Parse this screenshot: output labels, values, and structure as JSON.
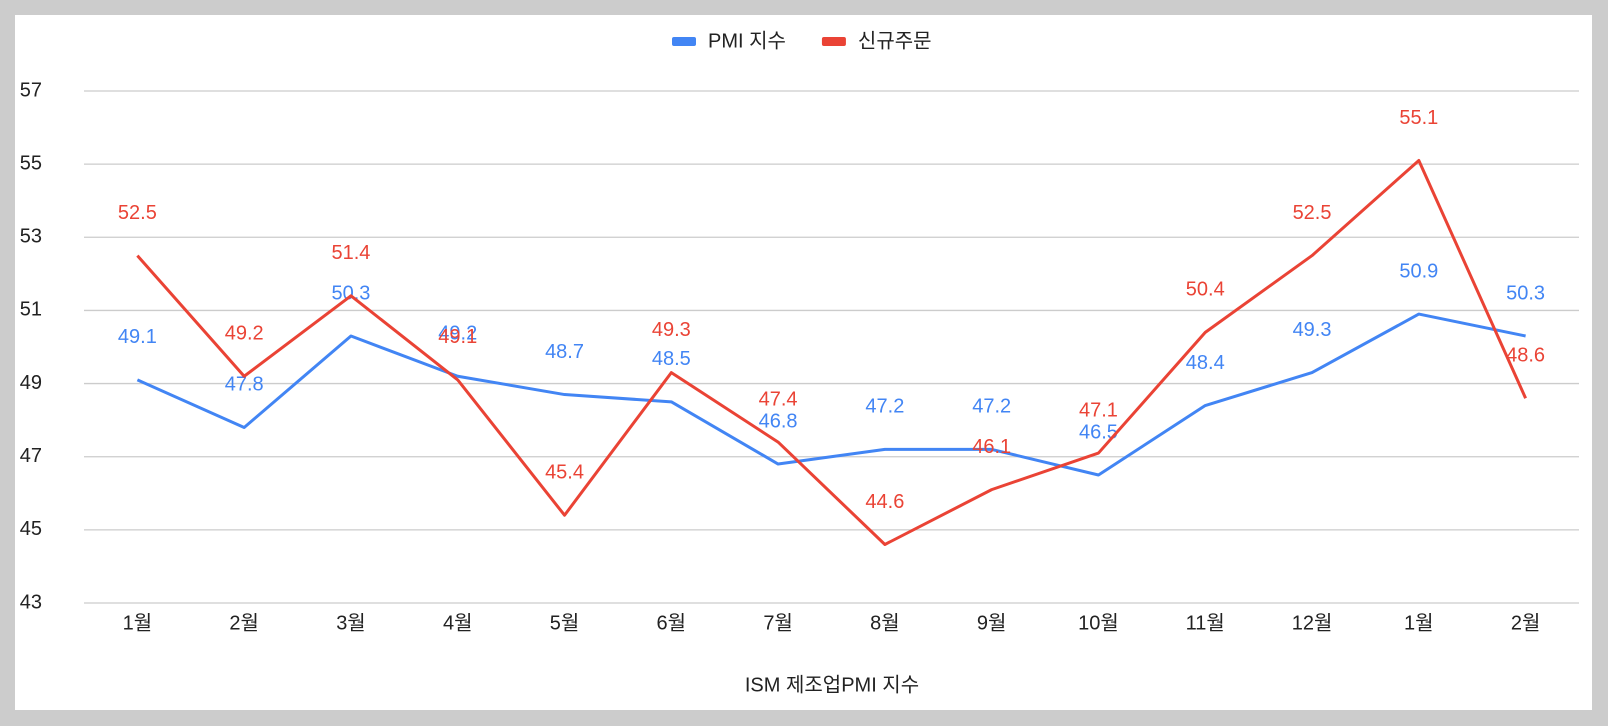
{
  "chart_data": {
    "type": "line",
    "x_label": "ISM 제조업PMI 지수",
    "categories": [
      "1월",
      "2월",
      "3월",
      "4월",
      "5월",
      "6월",
      "7월",
      "8월",
      "9월",
      "10월",
      "11월",
      "12월",
      "1월",
      "2월"
    ],
    "series": [
      {
        "name": "PMI 지수",
        "color": "#4285f4",
        "values": [
          49.1,
          47.8,
          50.3,
          49.2,
          48.7,
          48.5,
          46.8,
          47.2,
          47.2,
          46.5,
          48.4,
          49.3,
          50.9,
          50.3
        ]
      },
      {
        "name": "신규주문",
        "color": "#ea4335",
        "values": [
          52.5,
          49.2,
          51.4,
          49.1,
          45.4,
          49.3,
          47.4,
          44.6,
          46.1,
          47.1,
          50.4,
          52.5,
          55.1,
          48.6
        ]
      }
    ],
    "ylim": [
      43,
      57
    ],
    "yticks": [
      43,
      45,
      47,
      49,
      51,
      53,
      55,
      57
    ],
    "grid": true,
    "legend": "top"
  }
}
